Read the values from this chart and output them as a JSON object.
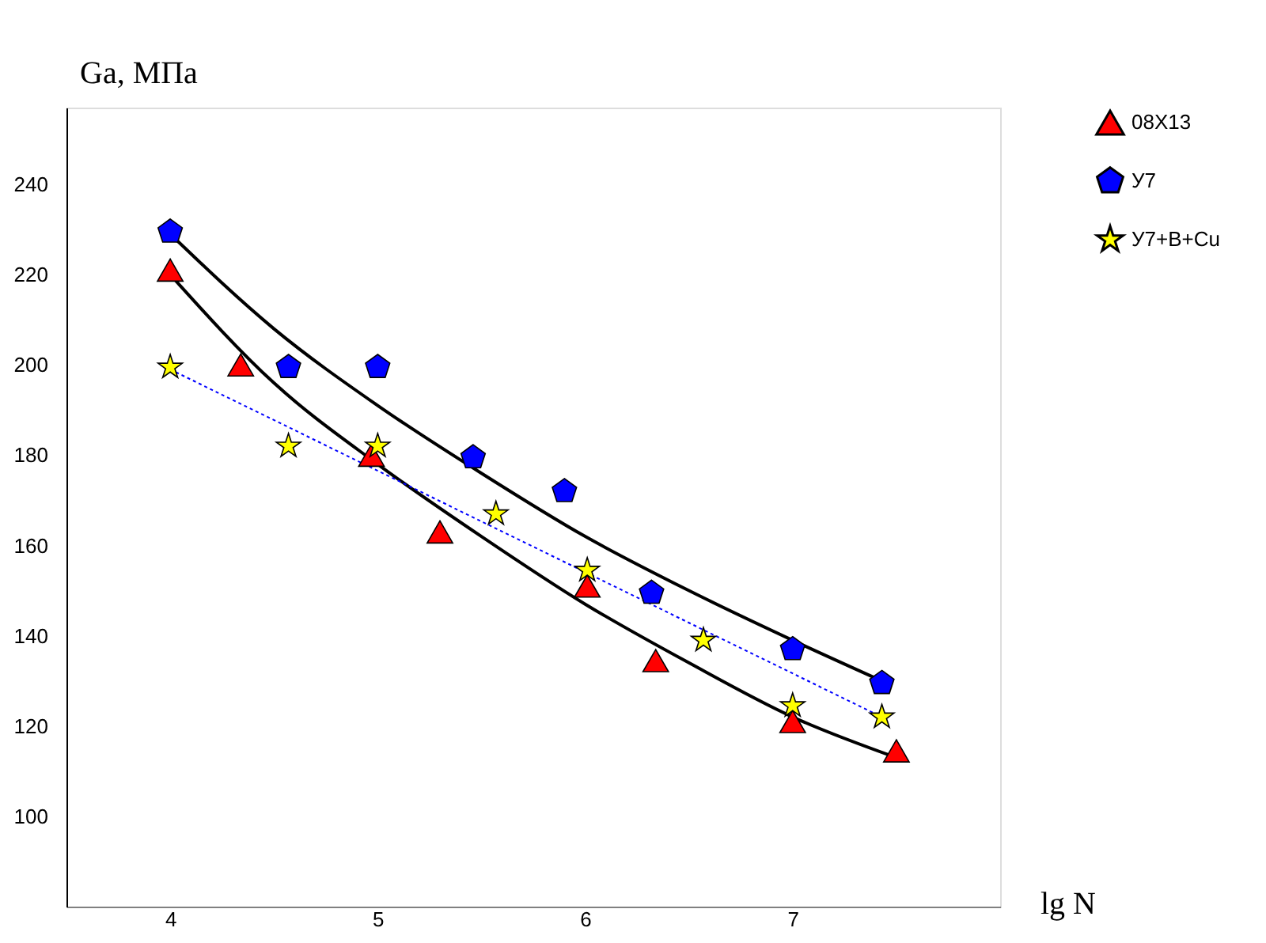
{
  "chart_data": {
    "type": "scatter",
    "xlabel": "lg N",
    "ylabel": "Ga, МПа",
    "xlim": [
      3.5,
      8.0
    ],
    "ylim": [
      80,
      257
    ],
    "xticks": [
      4,
      5,
      6,
      7
    ],
    "yticks": [
      100,
      120,
      140,
      160,
      180,
      200,
      220,
      240
    ],
    "grid": false,
    "legend": "right",
    "series": [
      {
        "name": "08Х13",
        "color": "#ff0000",
        "marker": "triangle",
        "x": [
          4.0,
          4.34,
          4.97,
          5.3,
          6.01,
          6.34,
          7.0,
          7.5
        ],
        "values": [
          221,
          200,
          180,
          163,
          151,
          134.5,
          121,
          114.5
        ]
      },
      {
        "name": "У7",
        "color": "#0000ff",
        "x": [
          4.0,
          4.57,
          5.0,
          5.46,
          5.9,
          6.32,
          7.0,
          7.43
        ],
        "values": [
          229.5,
          199.5,
          199.5,
          179.5,
          172,
          149.5,
          137,
          129.5
        ]
      },
      {
        "name": "У7+В+Cu",
        "color": "#ffff00",
        "marker": "star",
        "x": [
          4.0,
          4.57,
          5.0,
          5.57,
          6.01,
          6.57,
          7.0,
          7.43
        ],
        "values": [
          199.5,
          182,
          182,
          167,
          154.5,
          139,
          124.5,
          122
        ]
      },
      {
        "type": "line",
        "color": "#000000",
        "line_style": "solid",
        "x": [
          4.0,
          4.5,
          5.0,
          5.5,
          6.0,
          6.5,
          7.0,
          7.5
        ],
        "values": [
          220,
          196,
          178,
          162,
          147,
          134,
          122,
          113
        ]
      },
      {
        "type": "line",
        "color": "#000000",
        "line_style": "solid",
        "x": [
          4.0,
          4.5,
          5.0,
          5.5,
          6.0,
          6.5,
          7.0,
          7.43
        ],
        "values": [
          229,
          208,
          191,
          176,
          162,
          150,
          139,
          130
        ]
      },
      {
        "type": "line",
        "color": "#0000ff",
        "line_style": "dotted",
        "x": [
          4.0,
          7.43
        ],
        "values": [
          199,
          122
        ]
      }
    ]
  }
}
